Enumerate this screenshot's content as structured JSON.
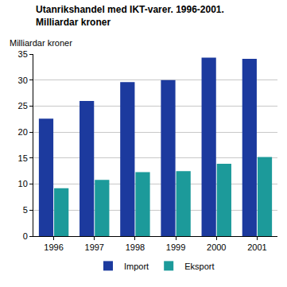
{
  "chart_data": {
    "type": "bar",
    "title": "Utanrikshandel med IKT-varer. 1996-2001. Milliardar kroner",
    "y_label": "Milliardar kroner",
    "categories": [
      "1996",
      "1997",
      "1998",
      "1999",
      "2000",
      "2001"
    ],
    "series": [
      {
        "name": "Import",
        "color": "#1c3a9e",
        "values": [
          22.6,
          26.0,
          29.6,
          30.0,
          34.3,
          34.1
        ]
      },
      {
        "name": "Eksport",
        "color": "#1c9a9a",
        "values": [
          9.2,
          10.8,
          12.3,
          12.5,
          13.9,
          15.2
        ]
      }
    ],
    "ylim": [
      0,
      35
    ],
    "yticks": [
      0,
      5,
      10,
      15,
      20,
      25,
      30,
      35
    ],
    "grid": true,
    "legend": "bottom"
  }
}
